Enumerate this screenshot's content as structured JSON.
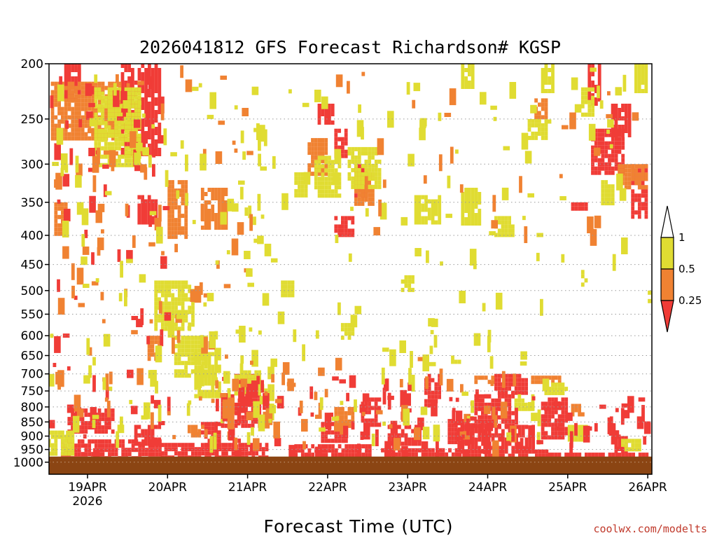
{
  "chart_data": {
    "type": "heatmap",
    "title": "2026041812 GFS Forecast Richardson# KGSP",
    "xlabel": "Forecast Time (UTC)",
    "ylabel": "",
    "y_scale": "log",
    "y_reversed": true,
    "ylim": [
      200,
      1050
    ],
    "y_ticks": [
      200,
      250,
      300,
      350,
      400,
      450,
      500,
      550,
      600,
      650,
      700,
      750,
      800,
      850,
      900,
      950,
      1000
    ],
    "x_ticks": [
      {
        "label": "19APR",
        "sublabel": "2026"
      },
      {
        "label": "20APR",
        "sublabel": ""
      },
      {
        "label": "21APR",
        "sublabel": ""
      },
      {
        "label": "22APR",
        "sublabel": ""
      },
      {
        "label": "23APR",
        "sublabel": ""
      },
      {
        "label": "24APR",
        "sublabel": ""
      },
      {
        "label": "25APR",
        "sublabel": ""
      },
      {
        "label": "26APR",
        "sublabel": ""
      }
    ],
    "xlim_hours": [
      0,
      180
    ],
    "grid": "dotted horizontal at pressure levels",
    "surface_fill": {
      "from_pressure": 1000,
      "color": "#8b4513"
    },
    "colorbar": {
      "placement": "right",
      "levels": [
        "1",
        "0.5",
        "0.25"
      ],
      "colors": {
        "lt_0.25": "#f03c37",
        "0.25_0.5": "#f08232",
        "0.5_1": "#e0dc32",
        "gt_1": "#ffffff"
      }
    },
    "bands": [
      {
        "class": "red",
        "x": [
          4,
          34
        ],
        "y": [
          912,
          1000
        ]
      },
      {
        "class": "red",
        "x": [
          34,
          66
        ],
        "y": [
          925,
          1000
        ]
      },
      {
        "class": "red",
        "x": [
          74,
          98
        ],
        "y": [
          930,
          1000
        ]
      },
      {
        "class": "red",
        "x": [
          100,
          124
        ],
        "y": [
          945,
          1000
        ]
      },
      {
        "class": "red",
        "x": [
          124,
          150
        ],
        "y": [
          950,
          1000
        ]
      },
      {
        "class": "red",
        "x": [
          150,
          180
        ],
        "y": [
          962,
          1000
        ]
      },
      {
        "class": "red",
        "x": [
          6,
          20
        ],
        "y": [
          805,
          880
        ]
      },
      {
        "class": "red",
        "x": [
          26,
          34
        ],
        "y": [
          860,
          930
        ]
      },
      {
        "class": "red",
        "x": [
          52,
          64
        ],
        "y": [
          760,
          860
        ]
      },
      {
        "class": "red",
        "x": [
          56,
          64
        ],
        "y": [
          700,
          760
        ]
      },
      {
        "class": "red",
        "x": [
          46,
          52
        ],
        "y": [
          850,
          930
        ]
      },
      {
        "class": "red",
        "x": [
          82,
          90
        ],
        "y": [
          850,
          920
        ]
      },
      {
        "class": "red",
        "x": [
          94,
          100
        ],
        "y": [
          770,
          860
        ]
      },
      {
        "class": "red",
        "x": [
          102,
          112
        ],
        "y": [
          860,
          930
        ]
      },
      {
        "class": "red",
        "x": [
          113,
          118
        ],
        "y": [
          700,
          790
        ]
      },
      {
        "class": "red",
        "x": [
          120,
          128
        ],
        "y": [
          840,
          930
        ]
      },
      {
        "class": "red",
        "x": [
          124,
          146
        ],
        "y": [
          860,
          950
        ]
      },
      {
        "class": "red",
        "x": [
          128,
          140
        ],
        "y": [
          760,
          860
        ]
      },
      {
        "class": "red",
        "x": [
          134,
          144
        ],
        "y": [
          700,
          760
        ]
      },
      {
        "class": "red",
        "x": [
          148,
          156
        ],
        "y": [
          770,
          910
        ]
      },
      {
        "class": "red",
        "x": [
          169,
          174
        ],
        "y": [
          900,
          950
        ]
      },
      {
        "class": "red",
        "x": [
          22,
          34
        ],
        "y": [
          200,
          290
        ]
      },
      {
        "class": "red",
        "x": [
          18,
          26
        ],
        "y": [
          220,
          250
        ]
      },
      {
        "class": "red",
        "x": [
          27,
          33
        ],
        "y": [
          340,
          380
        ]
      },
      {
        "class": "red",
        "x": [
          5,
          10
        ],
        "y": [
          200,
          230
        ]
      },
      {
        "class": "red",
        "x": [
          81,
          86
        ],
        "y": [
          235,
          255
        ]
      },
      {
        "class": "red",
        "x": [
          86,
          90
        ],
        "y": [
          260,
          290
        ]
      },
      {
        "class": "red",
        "x": [
          92,
          96
        ],
        "y": [
          300,
          340
        ]
      },
      {
        "class": "red",
        "x": [
          86,
          92
        ],
        "y": [
          370,
          400
        ]
      },
      {
        "class": "red",
        "x": [
          163,
          173
        ],
        "y": [
          260,
          310
        ]
      },
      {
        "class": "red",
        "x": [
          169,
          175
        ],
        "y": [
          235,
          265
        ]
      },
      {
        "class": "red",
        "x": [
          175,
          180
        ],
        "y": [
          300,
          370
        ]
      },
      {
        "class": "red",
        "x": [
          162,
          166
        ],
        "y": [
          200,
          235
        ]
      },
      {
        "class": "red",
        "x": [
          157,
          162
        ],
        "y": [
          350,
          360
        ]
      },
      {
        "class": "orange",
        "x": [
          1,
          22
        ],
        "y": [
          215,
          270
        ]
      },
      {
        "class": "orange",
        "x": [
          36,
          42
        ],
        "y": [
          320,
          400
        ]
      },
      {
        "class": "orange",
        "x": [
          46,
          54
        ],
        "y": [
          330,
          390
        ]
      },
      {
        "class": "orange",
        "x": [
          30,
          34
        ],
        "y": [
          600,
          660
        ]
      },
      {
        "class": "orange",
        "x": [
          42,
          48
        ],
        "y": [
          860,
          900
        ]
      },
      {
        "class": "orange",
        "x": [
          78,
          84
        ],
        "y": [
          270,
          310
        ]
      },
      {
        "class": "orange",
        "x": [
          92,
          98
        ],
        "y": [
          310,
          350
        ]
      },
      {
        "class": "orange",
        "x": [
          128,
          134
        ],
        "y": [
          705,
          725
        ]
      },
      {
        "class": "orange",
        "x": [
          145,
          154
        ],
        "y": [
          705,
          725
        ]
      },
      {
        "class": "orange",
        "x": [
          157,
          161
        ],
        "y": [
          790,
          830
        ]
      },
      {
        "class": "orange",
        "x": [
          146,
          150
        ],
        "y": [
          230,
          250
        ]
      },
      {
        "class": "orange",
        "x": [
          171,
          180
        ],
        "y": [
          300,
          330
        ]
      },
      {
        "class": "orange",
        "x": [
          2,
          6
        ],
        "y": [
          350,
          400
        ]
      },
      {
        "class": "orange",
        "x": [
          86,
          92
        ],
        "y": [
          800,
          860
        ]
      },
      {
        "class": "yellow",
        "x": [
          0,
          8
        ],
        "y": [
          880,
          960
        ]
      },
      {
        "class": "yellow",
        "x": [
          14,
          28
        ],
        "y": [
          220,
          300
        ]
      },
      {
        "class": "yellow",
        "x": [
          32,
          44
        ],
        "y": [
          480,
          580
        ]
      },
      {
        "class": "yellow",
        "x": [
          38,
          48
        ],
        "y": [
          600,
          700
        ]
      },
      {
        "class": "yellow",
        "x": [
          44,
          52
        ],
        "y": [
          630,
          760
        ]
      },
      {
        "class": "yellow",
        "x": [
          56,
          64
        ],
        "y": [
          690,
          760
        ]
      },
      {
        "class": "yellow",
        "x": [
          64,
          68
        ],
        "y": [
          730,
          780
        ]
      },
      {
        "class": "yellow",
        "x": [
          74,
          78
        ],
        "y": [
          310,
          340
        ]
      },
      {
        "class": "yellow",
        "x": [
          80,
          88
        ],
        "y": [
          290,
          340
        ]
      },
      {
        "class": "yellow",
        "x": [
          90,
          100
        ],
        "y": [
          280,
          330
        ]
      },
      {
        "class": "yellow",
        "x": [
          88,
          92
        ],
        "y": [
          570,
          600
        ]
      },
      {
        "class": "yellow",
        "x": [
          70,
          74
        ],
        "y": [
          480,
          510
        ]
      },
      {
        "class": "yellow",
        "x": [
          106,
          110
        ],
        "y": [
          470,
          500
        ]
      },
      {
        "class": "yellow",
        "x": [
          110,
          118
        ],
        "y": [
          340,
          380
        ]
      },
      {
        "class": "yellow",
        "x": [
          124,
          130
        ],
        "y": [
          330,
          380
        ]
      },
      {
        "class": "yellow",
        "x": [
          134,
          140
        ],
        "y": [
          370,
          400
        ]
      },
      {
        "class": "yellow",
        "x": [
          140,
          146
        ],
        "y": [
          760,
          800
        ]
      },
      {
        "class": "yellow",
        "x": [
          144,
          150
        ],
        "y": [
          250,
          270
        ]
      },
      {
        "class": "yellow",
        "x": [
          148,
          156
        ],
        "y": [
          725,
          760
        ]
      },
      {
        "class": "yellow",
        "x": [
          156,
          162
        ],
        "y": [
          860,
          920
        ]
      },
      {
        "class": "yellow",
        "x": [
          172,
          178
        ],
        "y": [
          910,
          950
        ]
      },
      {
        "class": "yellow",
        "x": [
          160,
          164
        ],
        "y": [
          220,
          245
        ]
      },
      {
        "class": "yellow",
        "x": [
          166,
          170
        ],
        "y": [
          320,
          350
        ]
      },
      {
        "class": "yellow",
        "x": [
          124,
          128
        ],
        "y": [
          200,
          220
        ]
      },
      {
        "class": "yellow",
        "x": [
          148,
          152
        ],
        "y": [
          200,
          225
        ]
      },
      {
        "class": "yellow",
        "x": [
          176,
          180
        ],
        "y": [
          200,
          225
        ]
      },
      {
        "class": "yellow",
        "x": [
          160,
          162
        ],
        "y": [
          460,
          490
        ]
      },
      {
        "class": "yellow",
        "x": [
          121,
          124
        ],
        "y": [
          650,
          670
        ]
      },
      {
        "class": "yellow",
        "x": [
          180,
          182
        ],
        "y": [
          500,
          520
        ]
      }
    ],
    "speckle": [
      {
        "class": "red",
        "x": [
          0,
          36
        ],
        "y": [
          200,
          950
        ],
        "n": 70
      },
      {
        "class": "orange",
        "x": [
          0,
          60
        ],
        "y": [
          200,
          900
        ],
        "n": 90
      },
      {
        "class": "yellow",
        "x": [
          0,
          70
        ],
        "y": [
          200,
          900
        ],
        "n": 120
      },
      {
        "class": "red",
        "x": [
          50,
          130
        ],
        "y": [
          700,
          950
        ],
        "n": 70
      },
      {
        "class": "orange",
        "x": [
          50,
          140
        ],
        "y": [
          650,
          930
        ],
        "n": 60
      },
      {
        "class": "yellow",
        "x": [
          40,
          150
        ],
        "y": [
          500,
          900
        ],
        "n": 70
      },
      {
        "class": "yellow",
        "x": [
          60,
          180
        ],
        "y": [
          200,
          450
        ],
        "n": 70
      },
      {
        "class": "orange",
        "x": [
          60,
          180
        ],
        "y": [
          200,
          400
        ],
        "n": 30
      },
      {
        "class": "red",
        "x": [
          120,
          180
        ],
        "y": [
          750,
          950
        ],
        "n": 50
      }
    ]
  },
  "colorbar_labels": [
    "1",
    "0.5",
    "0.25"
  ],
  "credit": "coolwx.com/modelts"
}
